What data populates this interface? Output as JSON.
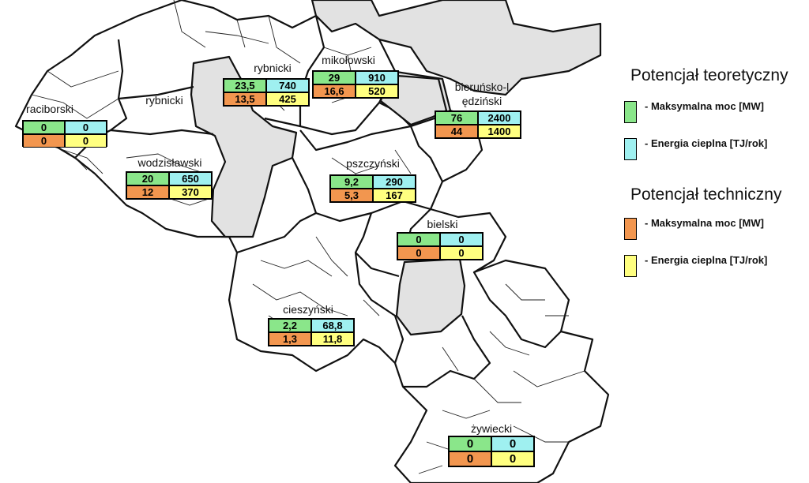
{
  "legend": {
    "title_theoretical": "Potencjał teoretyczny",
    "title_technical": "Potencjał techniczny",
    "theoretical_power": "- Maksymalna moc [MW]",
    "theoretical_energy": "- Energia cieplna [TJ/rok]",
    "technical_power": "- Maksymalna moc [MW]",
    "technical_energy": "- Energia cieplna [TJ/rok]"
  },
  "colors": {
    "theoretical_power": "#8ae68a",
    "theoretical_energy": "#9ff0f0",
    "technical_power": "#f2964f",
    "technical_energy": "#ffff80"
  },
  "counties": [
    {
      "name": "raciborski",
      "theo_power": "0",
      "theo_energy": "0",
      "tech_power": "0",
      "tech_energy": "0"
    },
    {
      "name": "rybnicki",
      "theo_power": "",
      "theo_energy": "",
      "tech_power": "",
      "tech_energy": ""
    },
    {
      "name": "rybnicki",
      "theo_power": "23,5",
      "theo_energy": "740",
      "tech_power": "13,5",
      "tech_energy": "425"
    },
    {
      "name": "mikołowski",
      "theo_power": "29",
      "theo_energy": "910",
      "tech_power": "16,6",
      "tech_energy": "520"
    },
    {
      "name": "bieruńsko-lędziński",
      "theo_power": "76",
      "theo_energy": "2400",
      "tech_power": "44",
      "tech_energy": "1400"
    },
    {
      "name": "wodzisławski",
      "theo_power": "20",
      "theo_energy": "650",
      "tech_power": "12",
      "tech_energy": "370"
    },
    {
      "name": "pszczyński",
      "theo_power": "9,2",
      "theo_energy": "290",
      "tech_power": "5,3",
      "tech_energy": "167"
    },
    {
      "name": "bielski",
      "theo_power": "0",
      "theo_energy": "0",
      "tech_power": "0",
      "tech_energy": "0"
    },
    {
      "name": "cieszyński",
      "theo_power": "2,2",
      "theo_energy": "68,8",
      "tech_power": "1,3",
      "tech_energy": "11,8"
    },
    {
      "name": "żywiecki",
      "theo_power": "0",
      "theo_energy": "0",
      "tech_power": "0",
      "tech_energy": "0"
    }
  ]
}
